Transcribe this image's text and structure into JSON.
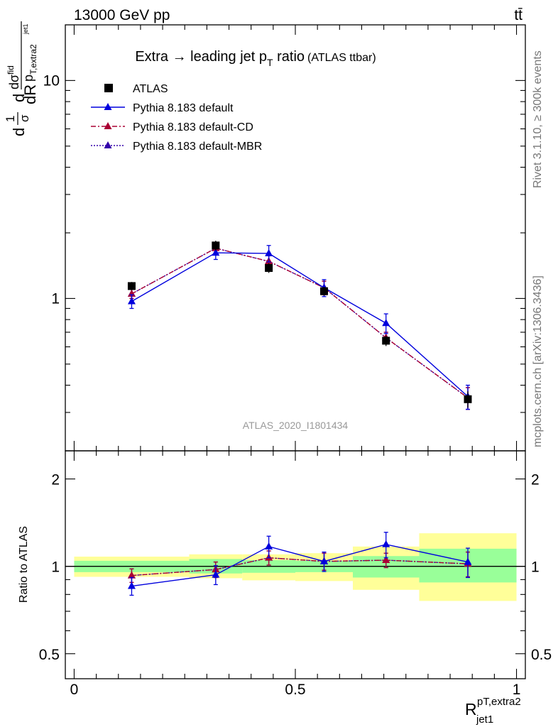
{
  "header": {
    "left": "13000 GeV pp",
    "right": "tt̄"
  },
  "side_text": {
    "rivet": "Rivet 3.1.10, ≥ 300k events",
    "mcplots": "mcplots.cern.ch [arXiv:1306.3436]"
  },
  "analysis_id": "ATLAS_2020_I1801434",
  "colors": {
    "data": "#000000",
    "default": "#0000dd",
    "cd": "#aa0033",
    "mbr": "#3300aa",
    "band_outer": "#ffff99",
    "band_inner": "#99ff99"
  },
  "chart_data": [
    {
      "type": "line",
      "panel": "main",
      "title_parts": {
        "main": "Extra → leading jet p",
        "sub": "T",
        "after": " ratio",
        "small": "(ATLAS ttbar)"
      },
      "ylabel_parts": [
        "d",
        "1",
        "σ",
        "d",
        "dσ",
        "fid",
        "p",
        "T,extra2",
        "jet1",
        "dR"
      ],
      "yscale": "log",
      "ylim": [
        0.2,
        18
      ],
      "xlim": [
        -0.02,
        1.02
      ],
      "y_ticklabels": [
        {
          "value": 1,
          "label": "1"
        },
        {
          "value": 10,
          "label": "10"
        }
      ],
      "x_bins": [
        [
          0.0,
          0.26
        ],
        [
          0.26,
          0.38
        ],
        [
          0.38,
          0.5
        ],
        [
          0.5,
          0.63
        ],
        [
          0.63,
          0.78
        ],
        [
          0.78,
          1.0
        ]
      ],
      "x": [
        0.13,
        0.32,
        0.44,
        0.565,
        0.705,
        0.89
      ],
      "series": [
        {
          "name": "ATLAS",
          "style": "square",
          "color_key": "data",
          "values": [
            1.14,
            1.75,
            1.38,
            1.08,
            0.64,
            0.345
          ],
          "err": [
            0.05,
            0.09,
            0.07,
            0.05,
            0.035,
            0.03
          ]
        },
        {
          "name": "Pythia 8.183 default",
          "style": "solid",
          "color_key": "default",
          "values": [
            0.97,
            1.62,
            1.61,
            1.12,
            0.77,
            0.355
          ],
          "err": [
            0.07,
            0.11,
            0.14,
            0.1,
            0.08,
            0.045
          ]
        },
        {
          "name": "Pythia 8.183 default-CD",
          "style": "dashdot",
          "color_key": "cd",
          "values": [
            1.05,
            1.7,
            1.48,
            1.12,
            0.66,
            0.35
          ],
          "err": [
            0.05,
            0.1,
            0.09,
            0.08,
            0.04,
            0.04
          ]
        },
        {
          "name": "Pythia 8.183 default-MBR",
          "style": "dotted",
          "color_key": "mbr",
          "values": [
            1.05,
            1.7,
            1.48,
            1.12,
            0.66,
            0.35
          ],
          "err": [
            0.05,
            0.1,
            0.09,
            0.08,
            0.04,
            0.04
          ]
        }
      ]
    },
    {
      "type": "line",
      "panel": "ratio",
      "ylabel": "Ratio to ATLAS",
      "yscale": "log",
      "ylim": [
        0.41,
        2.5
      ],
      "xlim": [
        -0.02,
        1.02
      ],
      "y_ticklabels": [
        {
          "value": 0.5,
          "label": "0.5"
        },
        {
          "value": 1,
          "label": "1"
        },
        {
          "value": 2,
          "label": "2"
        }
      ],
      "x_ticklabels": [
        {
          "value": 0,
          "label": "0"
        },
        {
          "value": 0.5,
          "label": "0.5"
        },
        {
          "value": 1,
          "label": "1"
        }
      ],
      "xlabel_parts": [
        "R",
        "pT,extra2",
        "jet1"
      ],
      "bands": [
        {
          "range": [
            0.0,
            0.26
          ],
          "inner": [
            0.955,
            1.045
          ],
          "outer": [
            0.92,
            1.08
          ]
        },
        {
          "range": [
            0.26,
            0.38
          ],
          "inner": [
            0.945,
            1.06
          ],
          "outer": [
            0.91,
            1.1
          ]
        },
        {
          "range": [
            0.38,
            0.5
          ],
          "inner": [
            0.95,
            1.05
          ],
          "outer": [
            0.895,
            1.1
          ]
        },
        {
          "range": [
            0.5,
            0.63
          ],
          "inner": [
            0.955,
            1.045
          ],
          "outer": [
            0.89,
            1.11
          ]
        },
        {
          "range": [
            0.63,
            0.78
          ],
          "inner": [
            0.915,
            1.085
          ],
          "outer": [
            0.83,
            1.17
          ]
        },
        {
          "range": [
            0.78,
            1.0
          ],
          "inner": [
            0.88,
            1.15
          ],
          "outer": [
            0.76,
            1.3
          ]
        }
      ],
      "x": [
        0.13,
        0.32,
        0.44,
        0.565,
        0.705,
        0.89
      ],
      "series": [
        {
          "name": "Pythia 8.183 default",
          "style": "solid",
          "color_key": "default",
          "values": [
            0.855,
            0.935,
            1.17,
            1.04,
            1.19,
            1.035
          ],
          "err": [
            0.06,
            0.07,
            0.1,
            0.08,
            0.12,
            0.12
          ]
        },
        {
          "name": "Pythia 8.183 default-CD",
          "style": "dashdot",
          "color_key": "cd",
          "values": [
            0.93,
            0.975,
            1.07,
            1.04,
            1.05,
            1.02
          ],
          "err": [
            0.05,
            0.06,
            0.06,
            0.07,
            0.06,
            0.1
          ]
        },
        {
          "name": "Pythia 8.183 default-MBR",
          "style": "dotted",
          "color_key": "mbr",
          "values": [
            0.93,
            0.975,
            1.07,
            1.04,
            1.05,
            1.02
          ],
          "err": [
            0.05,
            0.06,
            0.06,
            0.07,
            0.06,
            0.1
          ]
        }
      ]
    }
  ]
}
